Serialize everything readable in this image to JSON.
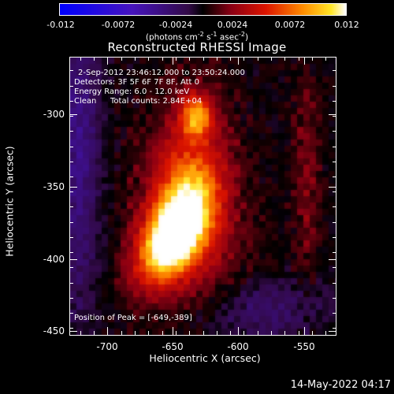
{
  "colorbar": {
    "ticks": [
      "-0.012",
      "-0.0072",
      "-0.0024",
      "0.0024",
      "0.0072",
      "0.012"
    ],
    "units_prefix": "(photons cm",
    "units_sup1": "-2",
    "units_mid": " s",
    "units_sup2": "-1",
    "units_mid2": " asec",
    "units_sup3": "-2",
    "units_suffix": ")"
  },
  "title": "Reconstructed RHESSI Image",
  "info": {
    "line1": "2-Sep-2012 23:46:12.000 to 23:50:24.000",
    "line2": "Detectors: 3F 5F 6F 7F 8F, Att 0",
    "line3": "Energy Range: 6.0 - 12.0 keV",
    "line4_a": "Clean",
    "line4_b": "Total counts: 2.84E+04",
    "peak": "Position of Peak = [-649,-389]"
  },
  "axes": {
    "xlabel": "Heliocentric X (arcsec)",
    "ylabel": "Heliocentric Y (arcsec)",
    "xticks": [
      "-700",
      "-650",
      "-600",
      "-550"
    ],
    "yticks": [
      "-300",
      "-350",
      "-400",
      "-450"
    ],
    "xrange": [
      -733,
      -537
    ],
    "yrange": [
      -271,
      -455
    ]
  },
  "peak_position": {
    "x": -649,
    "y": -389
  },
  "timestamp": "14-May-2022 04:17"
}
